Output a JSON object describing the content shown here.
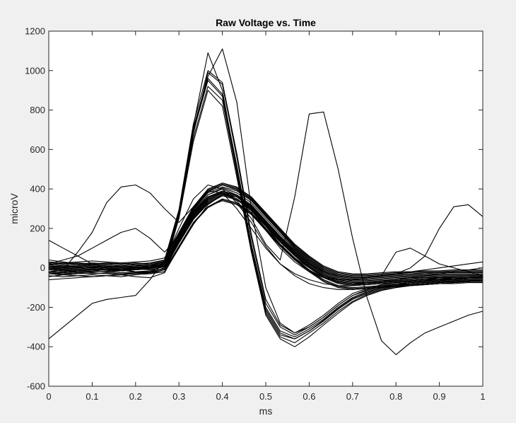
{
  "chart_data": {
    "type": "line",
    "title": "Raw Voltage vs. Time",
    "xlabel": "ms",
    "ylabel": "microV",
    "xlim": [
      0,
      1
    ],
    "ylim": [
      -600,
      1200
    ],
    "xticks": [
      0,
      0.1,
      0.2,
      0.3,
      0.4,
      0.5,
      0.6,
      0.7,
      0.8,
      0.9,
      1
    ],
    "xtick_labels": [
      "0",
      "0.1",
      "0.2",
      "0.3",
      "0.4",
      "0.5",
      "0.6",
      "0.7",
      "0.8",
      "0.9",
      "1"
    ],
    "yticks": [
      -600,
      -400,
      -200,
      0,
      200,
      400,
      600,
      800,
      1000,
      1200
    ],
    "ytick_labels": [
      "-600",
      "-400",
      "-200",
      "0",
      "200",
      "400",
      "600",
      "800",
      "1000",
      "1200"
    ],
    "grid": false,
    "line_color": "#000000",
    "x": [
      0,
      0.0333,
      0.0667,
      0.1,
      0.1333,
      0.1667,
      0.2,
      0.2333,
      0.2667,
      0.3,
      0.3333,
      0.3667,
      0.4,
      0.4333,
      0.4667,
      0.5,
      0.5333,
      0.5667,
      0.6,
      0.6333,
      0.6667,
      0.7,
      0.7333,
      0.7667,
      0.8,
      0.8333,
      0.8667,
      0.9,
      0.9333,
      0.9667,
      1
    ],
    "series": [
      {
        "values": [
          0,
          -5,
          0,
          5,
          0,
          -5,
          0,
          5,
          20,
          150,
          280,
          360,
          390,
          370,
          320,
          240,
          160,
          90,
          30,
          -20,
          -50,
          -60,
          -60,
          -55,
          -50,
          -45,
          -45,
          -40,
          -40,
          -40,
          -40
        ]
      },
      {
        "values": [
          -20,
          -25,
          -15,
          -10,
          -20,
          -15,
          -10,
          -5,
          10,
          140,
          260,
          340,
          380,
          360,
          300,
          220,
          140,
          70,
          10,
          -40,
          -70,
          -80,
          -75,
          -70,
          -65,
          -60,
          -55,
          -55,
          -50,
          -50,
          -45
        ]
      },
      {
        "values": [
          20,
          15,
          20,
          25,
          20,
          15,
          20,
          25,
          40,
          170,
          300,
          390,
          420,
          400,
          350,
          270,
          190,
          110,
          50,
          0,
          -30,
          -40,
          -40,
          -35,
          -30,
          -30,
          -25,
          -25,
          -20,
          -20,
          -20
        ]
      },
      {
        "values": [
          -40,
          -45,
          -40,
          -35,
          -40,
          -45,
          -35,
          -30,
          -20,
          110,
          230,
          310,
          350,
          330,
          280,
          200,
          120,
          50,
          -10,
          -60,
          -90,
          -100,
          -95,
          -90,
          -85,
          -80,
          -75,
          -70,
          -70,
          -65,
          -60
        ]
      },
      {
        "values": [
          10,
          5,
          10,
          15,
          10,
          5,
          10,
          15,
          30,
          160,
          290,
          380,
          410,
          390,
          340,
          260,
          180,
          100,
          40,
          -10,
          -40,
          -50,
          -50,
          -45,
          -40,
          -35,
          -35,
          -30,
          -30,
          -30,
          -30
        ]
      },
      {
        "values": [
          -10,
          -15,
          -10,
          -5,
          -10,
          -15,
          -5,
          0,
          15,
          145,
          270,
          350,
          385,
          365,
          310,
          230,
          150,
          80,
          20,
          -30,
          -60,
          -70,
          -70,
          -65,
          -60,
          -55,
          -50,
          -50,
          -45,
          -45,
          -45
        ]
      },
      {
        "values": [
          30,
          25,
          30,
          35,
          30,
          25,
          30,
          35,
          50,
          180,
          310,
          400,
          430,
          410,
          360,
          280,
          200,
          120,
          60,
          10,
          -20,
          -30,
          -30,
          -25,
          -20,
          -20,
          -15,
          -15,
          -10,
          -10,
          -10
        ]
      },
      {
        "values": [
          -30,
          -35,
          -30,
          -25,
          -30,
          -35,
          -25,
          -20,
          -5,
          125,
          245,
          325,
          365,
          345,
          290,
          210,
          130,
          60,
          0,
          -50,
          -80,
          -90,
          -85,
          -80,
          -75,
          -70,
          -65,
          -60,
          -60,
          -55,
          -55
        ]
      },
      {
        "values": [
          0,
          10,
          5,
          0,
          5,
          10,
          0,
          -5,
          15,
          150,
          275,
          355,
          390,
          365,
          315,
          235,
          155,
          85,
          25,
          -25,
          -55,
          -65,
          -65,
          -60,
          -55,
          -50,
          -50,
          -45,
          -45,
          -40,
          -40
        ]
      },
      {
        "values": [
          -20,
          -10,
          -15,
          -20,
          -15,
          -10,
          -20,
          -25,
          0,
          135,
          255,
          335,
          375,
          350,
          300,
          215,
          135,
          65,
          5,
          -45,
          -75,
          -85,
          -80,
          -75,
          -70,
          -65,
          -60,
          -55,
          -55,
          -50,
          -50
        ]
      },
      {
        "values": [
          15,
          25,
          20,
          15,
          20,
          25,
          15,
          10,
          30,
          165,
          295,
          385,
          420,
          395,
          345,
          265,
          185,
          105,
          45,
          -5,
          -35,
          -45,
          -45,
          -40,
          -35,
          -30,
          -30,
          -25,
          -25,
          -25,
          -25
        ]
      },
      {
        "values": [
          -45,
          -35,
          -40,
          -45,
          -40,
          -35,
          -45,
          -50,
          -25,
          105,
          225,
          305,
          345,
          325,
          275,
          195,
          115,
          45,
          -15,
          -65,
          -95,
          -105,
          -100,
          -95,
          -90,
          -85,
          -80,
          -75,
          -70,
          -70,
          -65
        ]
      },
      {
        "values": [
          5,
          0,
          5,
          0,
          5,
          0,
          5,
          0,
          20,
          155,
          285,
          370,
          405,
          380,
          330,
          250,
          170,
          95,
          35,
          -15,
          -45,
          -55,
          -55,
          -50,
          -45,
          -40,
          -40,
          -35,
          -35,
          -35,
          -35
        ]
      },
      {
        "values": [
          -5,
          -10,
          -5,
          -10,
          -5,
          -10,
          -5,
          -10,
          5,
          140,
          265,
          345,
          380,
          360,
          305,
          225,
          145,
          75,
          15,
          -35,
          -65,
          -75,
          -75,
          -70,
          -65,
          -60,
          -55,
          -50,
          -50,
          -50,
          -50
        ]
      },
      {
        "values": [
          25,
          20,
          25,
          20,
          25,
          20,
          25,
          20,
          40,
          175,
          305,
          395,
          425,
          405,
          355,
          275,
          195,
          115,
          55,
          5,
          -25,
          -35,
          -35,
          -30,
          -25,
          -25,
          -20,
          -20,
          -15,
          -15,
          -15
        ]
      },
      {
        "values": [
          -25,
          -30,
          -25,
          -30,
          -25,
          -30,
          -25,
          -30,
          -10,
          130,
          250,
          330,
          370,
          350,
          295,
          215,
          135,
          65,
          5,
          -45,
          -75,
          -85,
          -80,
          -75,
          -70,
          -65,
          -60,
          -60,
          -55,
          -55,
          -55
        ]
      },
      {
        "values": [
          0,
          -5,
          0,
          5,
          0,
          -5,
          0,
          5,
          25,
          280,
          700,
          960,
          880,
          520,
          120,
          -200,
          -320,
          -350,
          -310,
          -260,
          -200,
          -150,
          -120,
          -100,
          -90,
          -80,
          -75,
          -70,
          -65,
          -60,
          -60
        ]
      },
      {
        "values": [
          -20,
          -25,
          -20,
          -15,
          -20,
          -25,
          -20,
          -15,
          10,
          260,
          680,
          990,
          930,
          560,
          150,
          -180,
          -300,
          -340,
          -300,
          -250,
          -190,
          -140,
          -115,
          -95,
          -85,
          -75,
          -70,
          -65,
          -60,
          -55,
          -55
        ]
      },
      {
        "values": [
          10,
          5,
          10,
          15,
          10,
          5,
          10,
          15,
          35,
          290,
          720,
          1090,
          900,
          500,
          100,
          -220,
          -340,
          -360,
          -320,
          -270,
          -210,
          -160,
          -130,
          -105,
          -95,
          -85,
          -80,
          -75,
          -70,
          -65,
          -65
        ]
      },
      {
        "values": [
          -10,
          -15,
          -10,
          -5,
          -10,
          -15,
          -10,
          -5,
          20,
          270,
          660,
          920,
          850,
          480,
          90,
          -230,
          -350,
          -380,
          -330,
          -280,
          -220,
          -170,
          -135,
          -110,
          -100,
          -90,
          -80,
          -75,
          -70,
          -65,
          -60
        ]
      },
      {
        "values": [
          5,
          0,
          5,
          10,
          5,
          0,
          5,
          10,
          30,
          285,
          710,
          970,
          1110,
          840,
          300,
          -100,
          -280,
          -330,
          -300,
          -250,
          -190,
          -140,
          -110,
          -90,
          -80,
          -75,
          -70,
          -65,
          -60,
          -55,
          -50
        ]
      },
      {
        "values": [
          -30,
          -35,
          -30,
          -25,
          -30,
          -35,
          -30,
          -25,
          0,
          250,
          640,
          900,
          820,
          460,
          80,
          -240,
          -360,
          -400,
          -350,
          -290,
          -230,
          -175,
          -140,
          -115,
          -100,
          -90,
          -85,
          -80,
          -75,
          -70,
          -70
        ]
      },
      {
        "values": [
          15,
          10,
          15,
          20,
          15,
          10,
          15,
          20,
          40,
          295,
          730,
          1000,
          940,
          580,
          170,
          -160,
          -290,
          -330,
          -290,
          -240,
          -180,
          -130,
          -105,
          -85,
          -75,
          -70,
          -65,
          -60,
          -55,
          -50,
          -50
        ]
      },
      {
        "values": [
          -5,
          -10,
          -5,
          0,
          -5,
          -10,
          -5,
          0,
          20,
          275,
          690,
          950,
          870,
          500,
          110,
          -210,
          -330,
          -360,
          -320,
          -265,
          -205,
          -155,
          -125,
          -100,
          -90,
          -80,
          -75,
          -70,
          -65,
          -60,
          -60
        ]
      },
      {
        "values": [
          -360,
          -300,
          -240,
          -180,
          -160,
          -150,
          -140,
          -60,
          40,
          200,
          350,
          420,
          400,
          330,
          230,
          110,
          20,
          -40,
          -80,
          -100,
          -110,
          -110,
          -105,
          -100,
          -95,
          -90,
          -85,
          -80,
          -75,
          -70,
          -65
        ]
      },
      {
        "values": [
          0,
          -10,
          80,
          180,
          330,
          410,
          420,
          380,
          300,
          230,
          310,
          390,
          380,
          300,
          200,
          100,
          20,
          -30,
          -60,
          -80,
          -90,
          -90,
          -85,
          -80,
          -75,
          -70,
          -65,
          -60,
          -55,
          -50,
          -45
        ]
      },
      {
        "values": [
          -20,
          -20,
          -15,
          -10,
          -10,
          -5,
          0,
          0,
          10,
          150,
          280,
          360,
          380,
          340,
          250,
          120,
          40,
          360,
          780,
          790,
          500,
          150,
          -150,
          -370,
          -440,
          -380,
          -330,
          -300,
          -270,
          -240,
          -220
        ]
      },
      {
        "values": [
          -30,
          -30,
          -25,
          -20,
          -15,
          -10,
          0,
          10,
          20,
          150,
          280,
          360,
          380,
          350,
          280,
          190,
          100,
          30,
          -20,
          -50,
          -60,
          -60,
          -50,
          -40,
          -30,
          0,
          60,
          200,
          310,
          320,
          260
        ]
      },
      {
        "values": [
          20,
          40,
          60,
          100,
          140,
          180,
          200,
          150,
          80,
          160,
          280,
          370,
          400,
          370,
          300,
          210,
          120,
          50,
          0,
          -40,
          -60,
          -60,
          -50,
          -40,
          -30,
          -20,
          -10,
          0,
          10,
          20,
          30
        ]
      },
      {
        "values": [
          -60,
          -55,
          -50,
          -45,
          -40,
          -35,
          -30,
          -25,
          -10,
          110,
          230,
          310,
          340,
          320,
          270,
          190,
          110,
          40,
          -20,
          -70,
          -100,
          -110,
          -105,
          -100,
          -95,
          -90,
          -85,
          -80,
          -80,
          -75,
          -75
        ]
      },
      {
        "values": [
          140,
          100,
          60,
          20,
          0,
          -10,
          -20,
          -20,
          10,
          150,
          280,
          360,
          380,
          350,
          290,
          200,
          110,
          40,
          -10,
          -50,
          -70,
          -80,
          -80,
          -70,
          -60,
          -50,
          -40,
          -30,
          -20,
          -10,
          0
        ]
      },
      {
        "values": [
          40,
          30,
          20,
          10,
          0,
          -10,
          -20,
          -30,
          -20,
          100,
          220,
          320,
          370,
          360,
          310,
          230,
          150,
          80,
          20,
          -20,
          -40,
          -50,
          -50,
          -40,
          80,
          100,
          60,
          20,
          0,
          -20,
          -40
        ]
      }
    ]
  }
}
